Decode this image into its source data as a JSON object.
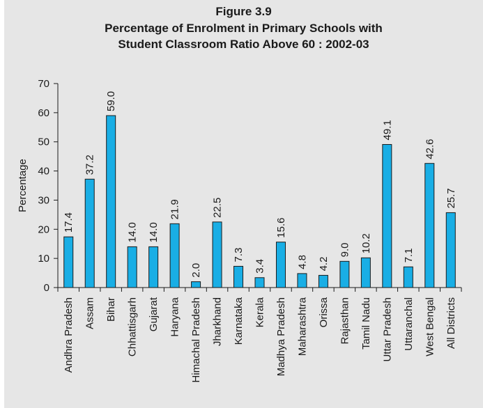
{
  "title": {
    "line1": "Figure 3.9",
    "line2": "Percentage of Enrolment in Primary Schools with",
    "line3": "Student Classroom Ratio Above 60 : 2002-03"
  },
  "chart_data": {
    "type": "bar",
    "title": "Figure 3.9 Percentage of Enrolment in Primary Schools with Student Classroom Ratio Above 60 : 2002-03",
    "ylabel": "Percentage",
    "xlabel": "",
    "ylim": [
      0,
      70
    ],
    "yticks": [
      0,
      10,
      20,
      30,
      40,
      50,
      60,
      70
    ],
    "categories": [
      "Andhra Pradesh",
      "Assam",
      "Bihar",
      "Chhattisgarh",
      "Gujarat",
      "Haryana",
      "Himachal Pradesh",
      "Jharkhand",
      "Karnataka",
      "Kerala",
      "Madhya Pradesh",
      "Maharashtra",
      "Orissa",
      "Rajasthan",
      "Tamil Nadu",
      "Uttar Pradesh",
      "Uttaranchal",
      "West Bengal",
      "All Districts"
    ],
    "values": [
      17.4,
      37.2,
      59.0,
      14.0,
      14.0,
      21.9,
      2.0,
      22.5,
      7.3,
      3.4,
      15.6,
      4.8,
      4.2,
      9.0,
      10.2,
      49.1,
      7.1,
      42.6,
      25.7
    ],
    "data_labels": [
      "17.4",
      "37.2",
      "59.0",
      "14.0",
      "14.0",
      "21.9",
      "2.0",
      "22.5",
      "7.3",
      "3.4",
      "15.6",
      "4.8",
      "4.2",
      "9.0",
      "10.2",
      "49.1",
      "7.1",
      "42.6",
      "25.7"
    ],
    "bar_color": "#19aee5",
    "bar_stroke": "#1a1a1a",
    "background": "#e6e6e6",
    "grid": false,
    "legend": "none"
  }
}
